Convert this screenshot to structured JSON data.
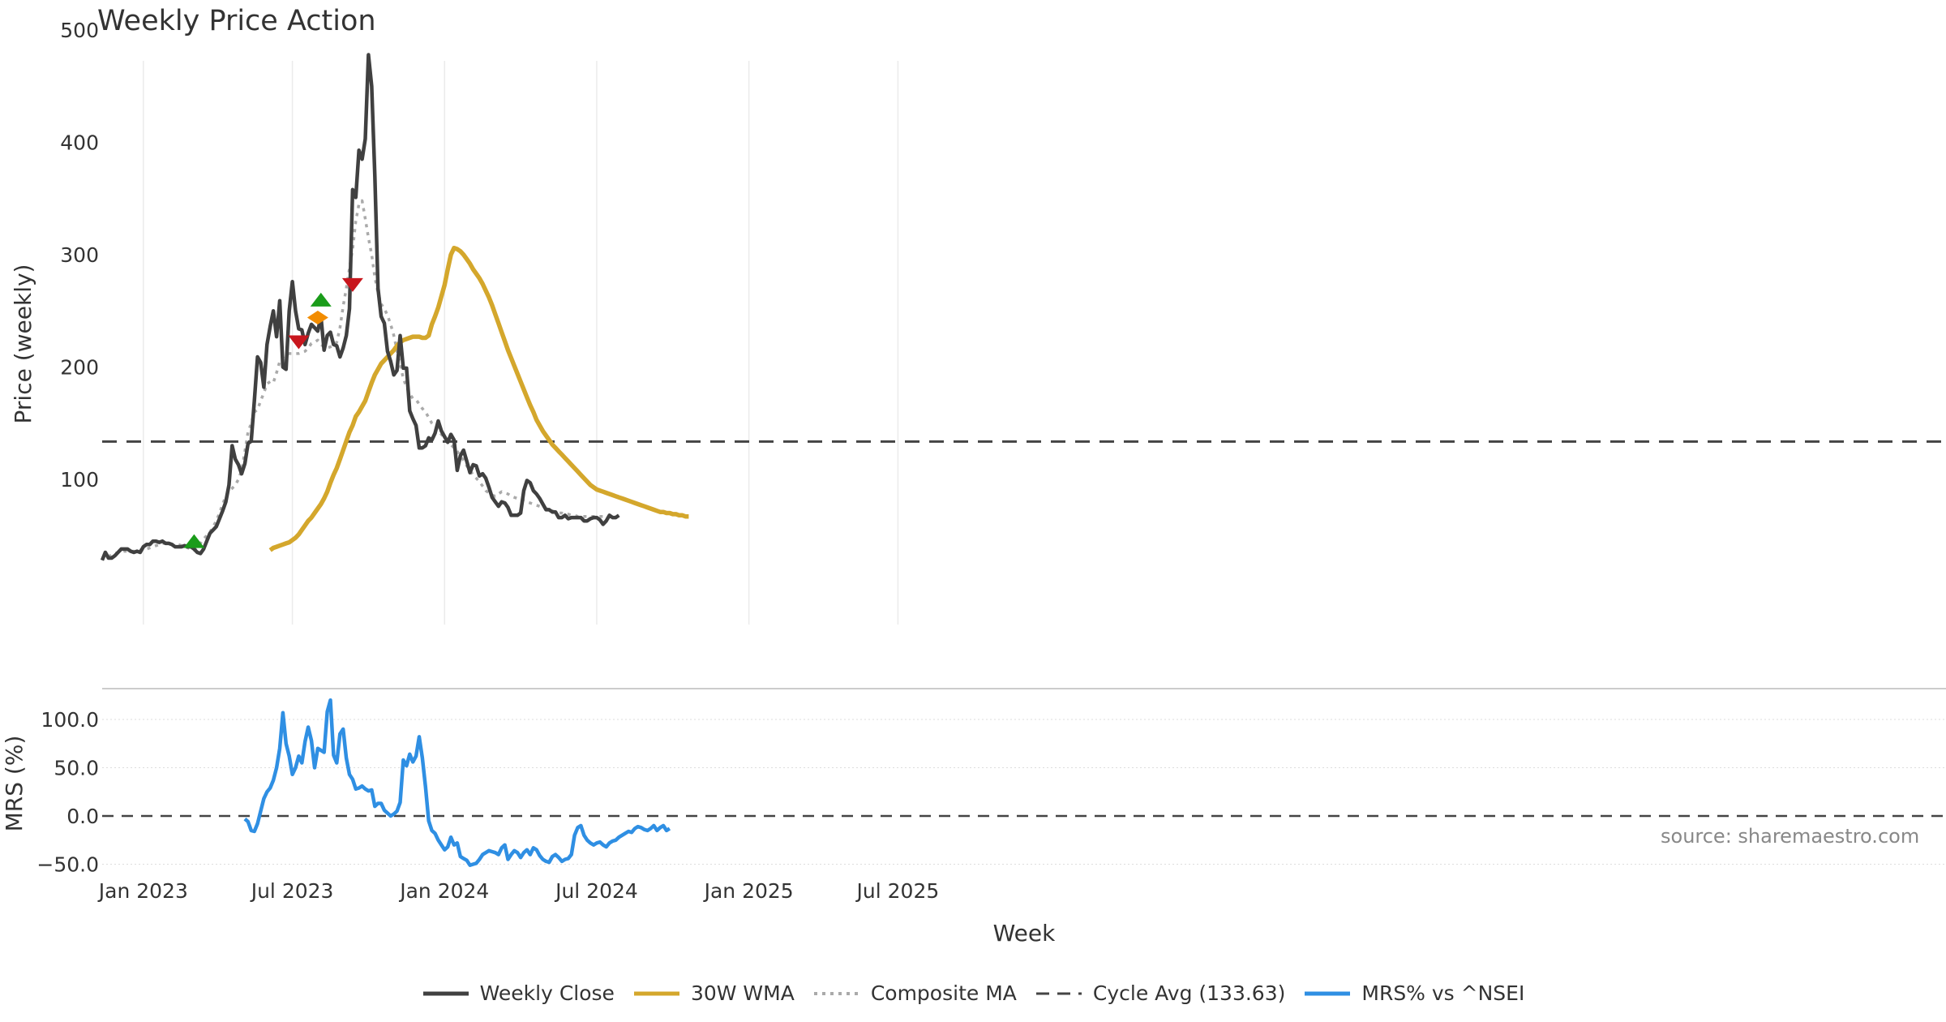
{
  "chart_data": [
    {
      "panel": "price",
      "type": "line",
      "title": "Weekly Price Action",
      "ylabel": "Price (weekly)",
      "xlabel": "Week",
      "ylim": [
        0,
        500
      ],
      "y_ticks": [
        100,
        200,
        300,
        400,
        500
      ],
      "x_ticks": [
        "Jan 2023",
        "Jul 2023",
        "Jan 2024",
        "Jul 2024",
        "Jan 2025",
        "Jul 2025"
      ],
      "x_tick_weeks": [
        13,
        60,
        108,
        156,
        204,
        251
      ],
      "grid": true,
      "series": [
        {
          "name": "Weekly Close",
          "color": "#404040",
          "dash": "solid",
          "values": [
            28,
            35,
            30,
            30,
            32,
            35,
            38,
            38,
            38,
            36,
            35,
            36,
            35,
            40,
            42,
            42,
            45,
            45,
            44,
            45,
            43,
            43,
            42,
            40,
            40,
            40,
            41,
            40,
            40,
            38,
            35,
            34,
            38,
            45,
            52,
            55,
            58,
            65,
            72,
            80,
            95,
            130,
            118,
            113,
            105,
            114,
            132,
            134,
            170,
            209,
            204,
            182,
            220,
            236,
            250,
            227,
            259,
            200,
            198,
            250,
            276,
            250,
            234,
            233,
            220,
            230,
            238,
            235,
            232,
            245,
            215,
            228,
            231,
            220,
            219,
            209,
            217,
            228,
            252,
            358,
            351,
            393,
            385,
            403,
            478,
            450,
            370,
            270,
            245,
            239,
            214,
            205,
            193,
            197,
            228,
            199,
            199,
            161,
            154,
            148,
            128,
            128,
            130,
            137,
            135,
            141,
            152,
            143,
            138,
            133,
            140,
            135,
            108,
            121,
            126,
            116,
            106,
            113,
            112,
            103,
            105,
            101,
            93,
            84,
            80,
            76,
            80,
            79,
            75,
            68,
            68,
            68,
            70,
            90,
            99,
            97,
            90,
            87,
            83,
            78,
            73,
            73,
            71,
            71,
            66,
            66,
            68,
            65,
            66,
            66,
            66,
            66,
            63,
            63,
            65,
            66,
            66,
            64,
            60,
            63,
            68,
            66,
            66,
            68
          ]
        },
        {
          "name": "30W WMA",
          "color": "#d4a72c",
          "dash": "solid",
          "start_index": 53,
          "values": [
            37,
            39,
            40,
            41,
            42,
            43,
            44,
            46,
            48,
            51,
            55,
            59,
            63,
            66,
            70,
            74,
            78,
            83,
            89,
            97,
            104,
            110,
            118,
            126,
            134,
            142,
            148,
            156,
            160,
            165,
            170,
            178,
            186,
            193,
            198,
            203,
            206,
            209,
            212,
            215,
            219,
            222,
            224,
            225,
            226,
            227,
            227,
            227,
            226,
            226,
            228,
            238,
            245,
            253,
            263,
            273,
            287,
            300,
            306,
            305,
            303,
            300,
            296,
            292,
            287,
            283,
            279,
            274,
            268,
            262,
            255,
            247,
            239,
            231,
            223,
            215,
            208,
            201,
            194,
            187,
            180,
            173,
            166,
            160,
            153,
            148,
            143,
            139,
            135,
            131,
            128,
            125,
            122,
            119,
            116,
            113,
            110,
            107,
            104,
            101,
            98,
            95,
            93,
            91,
            90,
            89,
            88,
            87,
            86,
            85,
            84,
            83,
            82,
            81,
            80,
            79,
            78,
            77,
            76,
            75,
            74,
            73,
            72,
            71,
            71,
            70,
            70,
            69,
            69,
            68,
            68,
            67,
            67
          ]
        },
        {
          "name": "Composite MA",
          "color": "#aaaaaa",
          "dash": "dotted",
          "start_index": 2,
          "values": [
            31,
            33,
            34,
            35,
            35,
            36,
            36,
            36,
            36,
            37,
            37,
            38,
            38,
            39,
            40,
            41,
            42,
            43,
            43,
            43,
            42,
            42,
            42,
            41,
            40,
            39,
            38,
            37,
            40,
            43,
            47,
            50,
            53,
            58,
            63,
            70,
            78,
            85,
            90,
            92,
            95,
            100,
            108,
            125,
            142,
            150,
            160,
            162,
            170,
            177,
            185,
            187,
            186,
            195,
            205,
            209,
            211,
            212,
            212,
            212,
            212,
            213,
            214,
            217,
            221,
            222,
            224,
            220,
            218,
            217,
            218,
            219,
            222,
            235,
            254,
            270,
            288,
            305,
            330,
            345,
            348,
            332,
            315,
            300,
            280,
            266,
            256,
            252,
            246,
            238,
            228,
            215,
            202,
            190,
            182,
            176,
            172,
            171,
            167,
            163,
            160,
            155,
            150,
            147,
            144,
            140,
            137,
            134,
            131,
            128,
            125,
            121,
            117,
            112,
            108,
            104,
            101,
            98,
            94,
            90,
            88,
            86,
            85,
            87,
            89,
            88,
            87,
            85,
            84,
            83,
            82,
            81,
            80,
            79,
            78,
            77,
            76,
            75,
            74,
            73,
            72,
            71,
            70,
            70,
            69,
            69,
            68,
            68,
            67,
            67,
            67,
            67,
            67,
            67,
            67,
            67,
            67,
            67
          ]
        },
        {
          "name": "Cycle Avg (133.63)",
          "color": "#444444",
          "dash": "dashed",
          "constant": 133.63
        }
      ],
      "markers": [
        {
          "type": "buy",
          "week": 29,
          "value": 45,
          "color": "#1a9c1a"
        },
        {
          "type": "buy",
          "week": 69,
          "value": 260,
          "color": "#1a9c1a"
        },
        {
          "type": "sell",
          "week": 62,
          "value": 222,
          "color": "#c8161d"
        },
        {
          "type": "sell",
          "week": 79,
          "value": 273,
          "color": "#c8161d"
        },
        {
          "type": "warn",
          "week": 68,
          "value": 244,
          "color": "#f28c00"
        }
      ]
    },
    {
      "panel": "mrs",
      "type": "line",
      "ylabel": "MRS (%)",
      "ylim": [
        -65,
        125
      ],
      "y_ticks": [
        "100.0",
        "50.0",
        "0.0",
        "−50.0"
      ],
      "y_tick_values": [
        100,
        50,
        0,
        -50
      ],
      "series": [
        {
          "name": "MRS% vs ^NSEI",
          "color": "#2f8fe3",
          "start_index": 45,
          "values": [
            -3,
            -6,
            -15,
            -16,
            -8,
            5,
            18,
            25,
            29,
            37,
            50,
            70,
            107,
            75,
            62,
            43,
            50,
            62,
            55,
            77,
            92,
            78,
            50,
            70,
            68,
            66,
            108,
            120,
            63,
            55,
            85,
            90,
            60,
            43,
            38,
            28,
            29,
            31,
            28,
            26,
            27,
            10,
            13,
            13,
            6,
            3,
            0,
            2,
            5,
            14,
            58,
            52,
            64,
            56,
            62,
            82,
            60,
            30,
            -5,
            -15,
            -18,
            -25,
            -30,
            -35,
            -32,
            -22,
            -30,
            -28,
            -42,
            -44,
            -46,
            -51,
            -50,
            -49,
            -45,
            -40,
            -38,
            -36,
            -37,
            -38,
            -40,
            -33,
            -30,
            -45,
            -40,
            -36,
            -38,
            -43,
            -38,
            -35,
            -40,
            -33,
            -35,
            -41,
            -45,
            -47,
            -48,
            -42,
            -40,
            -43,
            -47,
            -45,
            -44,
            -40,
            -20,
            -12,
            -10,
            -20,
            -25,
            -28,
            -30,
            -28,
            -27,
            -30,
            -32,
            -28,
            -26,
            -25,
            -22,
            -20,
            -18,
            -16,
            -17,
            -13,
            -11,
            -12,
            -14,
            -15,
            -13,
            -10,
            -15,
            -12,
            -10,
            -15,
            -13
          ]
        }
      ]
    }
  ],
  "source_text": "source: sharemaestro.com",
  "legend": [
    {
      "label": "Weekly Close",
      "color": "#404040",
      "dash": "solid"
    },
    {
      "label": "30W WMA",
      "color": "#d4a72c",
      "dash": "solid"
    },
    {
      "label": "Composite MA",
      "color": "#aaaaaa",
      "dash": "dotted"
    },
    {
      "label": "Cycle Avg (133.63)",
      "color": "#444444",
      "dash": "dashed"
    },
    {
      "label": "MRS% vs ^NSEI",
      "color": "#2f8fe3",
      "dash": "solid"
    }
  ]
}
